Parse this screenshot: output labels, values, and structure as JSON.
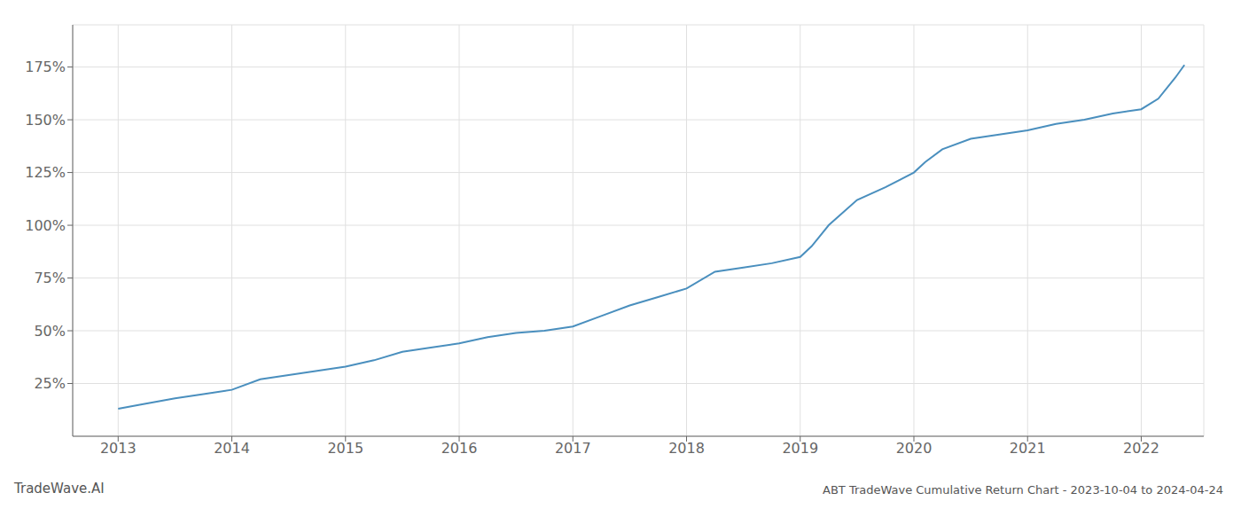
{
  "chart_data": {
    "type": "line",
    "x": [
      2013.0,
      2013.2,
      2013.5,
      2013.75,
      2014.0,
      2014.25,
      2014.5,
      2014.75,
      2015.0,
      2015.25,
      2015.5,
      2015.75,
      2016.0,
      2016.25,
      2016.5,
      2016.75,
      2017.0,
      2017.25,
      2017.5,
      2017.75,
      2018.0,
      2018.25,
      2018.5,
      2018.75,
      2019.0,
      2019.1,
      2019.25,
      2019.5,
      2019.75,
      2020.0,
      2020.1,
      2020.25,
      2020.5,
      2020.75,
      2021.0,
      2021.25,
      2021.5,
      2021.75,
      2022.0,
      2022.15,
      2022.3,
      2022.38
    ],
    "values": [
      13,
      15,
      18,
      20,
      22,
      27,
      29,
      31,
      33,
      36,
      40,
      42,
      44,
      47,
      49,
      50,
      52,
      57,
      62,
      66,
      70,
      78,
      80,
      82,
      85,
      90,
      100,
      112,
      118,
      125,
      130,
      136,
      141,
      143,
      145,
      148,
      150,
      153,
      155,
      160,
      170,
      176
    ],
    "color": "#4a8fbe",
    "xlim": [
      2012.6,
      2022.55
    ],
    "xticks": [
      2013,
      2014,
      2015,
      2016,
      2017,
      2018,
      2019,
      2020,
      2021,
      2022
    ],
    "ylim": [
      0,
      195
    ],
    "yticks": [
      {
        "value": 25,
        "label": "25%"
      },
      {
        "value": 50,
        "label": "50%"
      },
      {
        "value": 75,
        "label": "75%"
      },
      {
        "value": 100,
        "label": "100%"
      },
      {
        "value": 125,
        "label": "125%"
      },
      {
        "value": 150,
        "label": "150%"
      },
      {
        "value": 175,
        "label": "175%"
      }
    ],
    "grid": true,
    "annotations": [
      "TradeWave.AI",
      "ABT TradeWave Cumulative Return Chart - 2023-10-04 to 2024-04-24"
    ]
  }
}
